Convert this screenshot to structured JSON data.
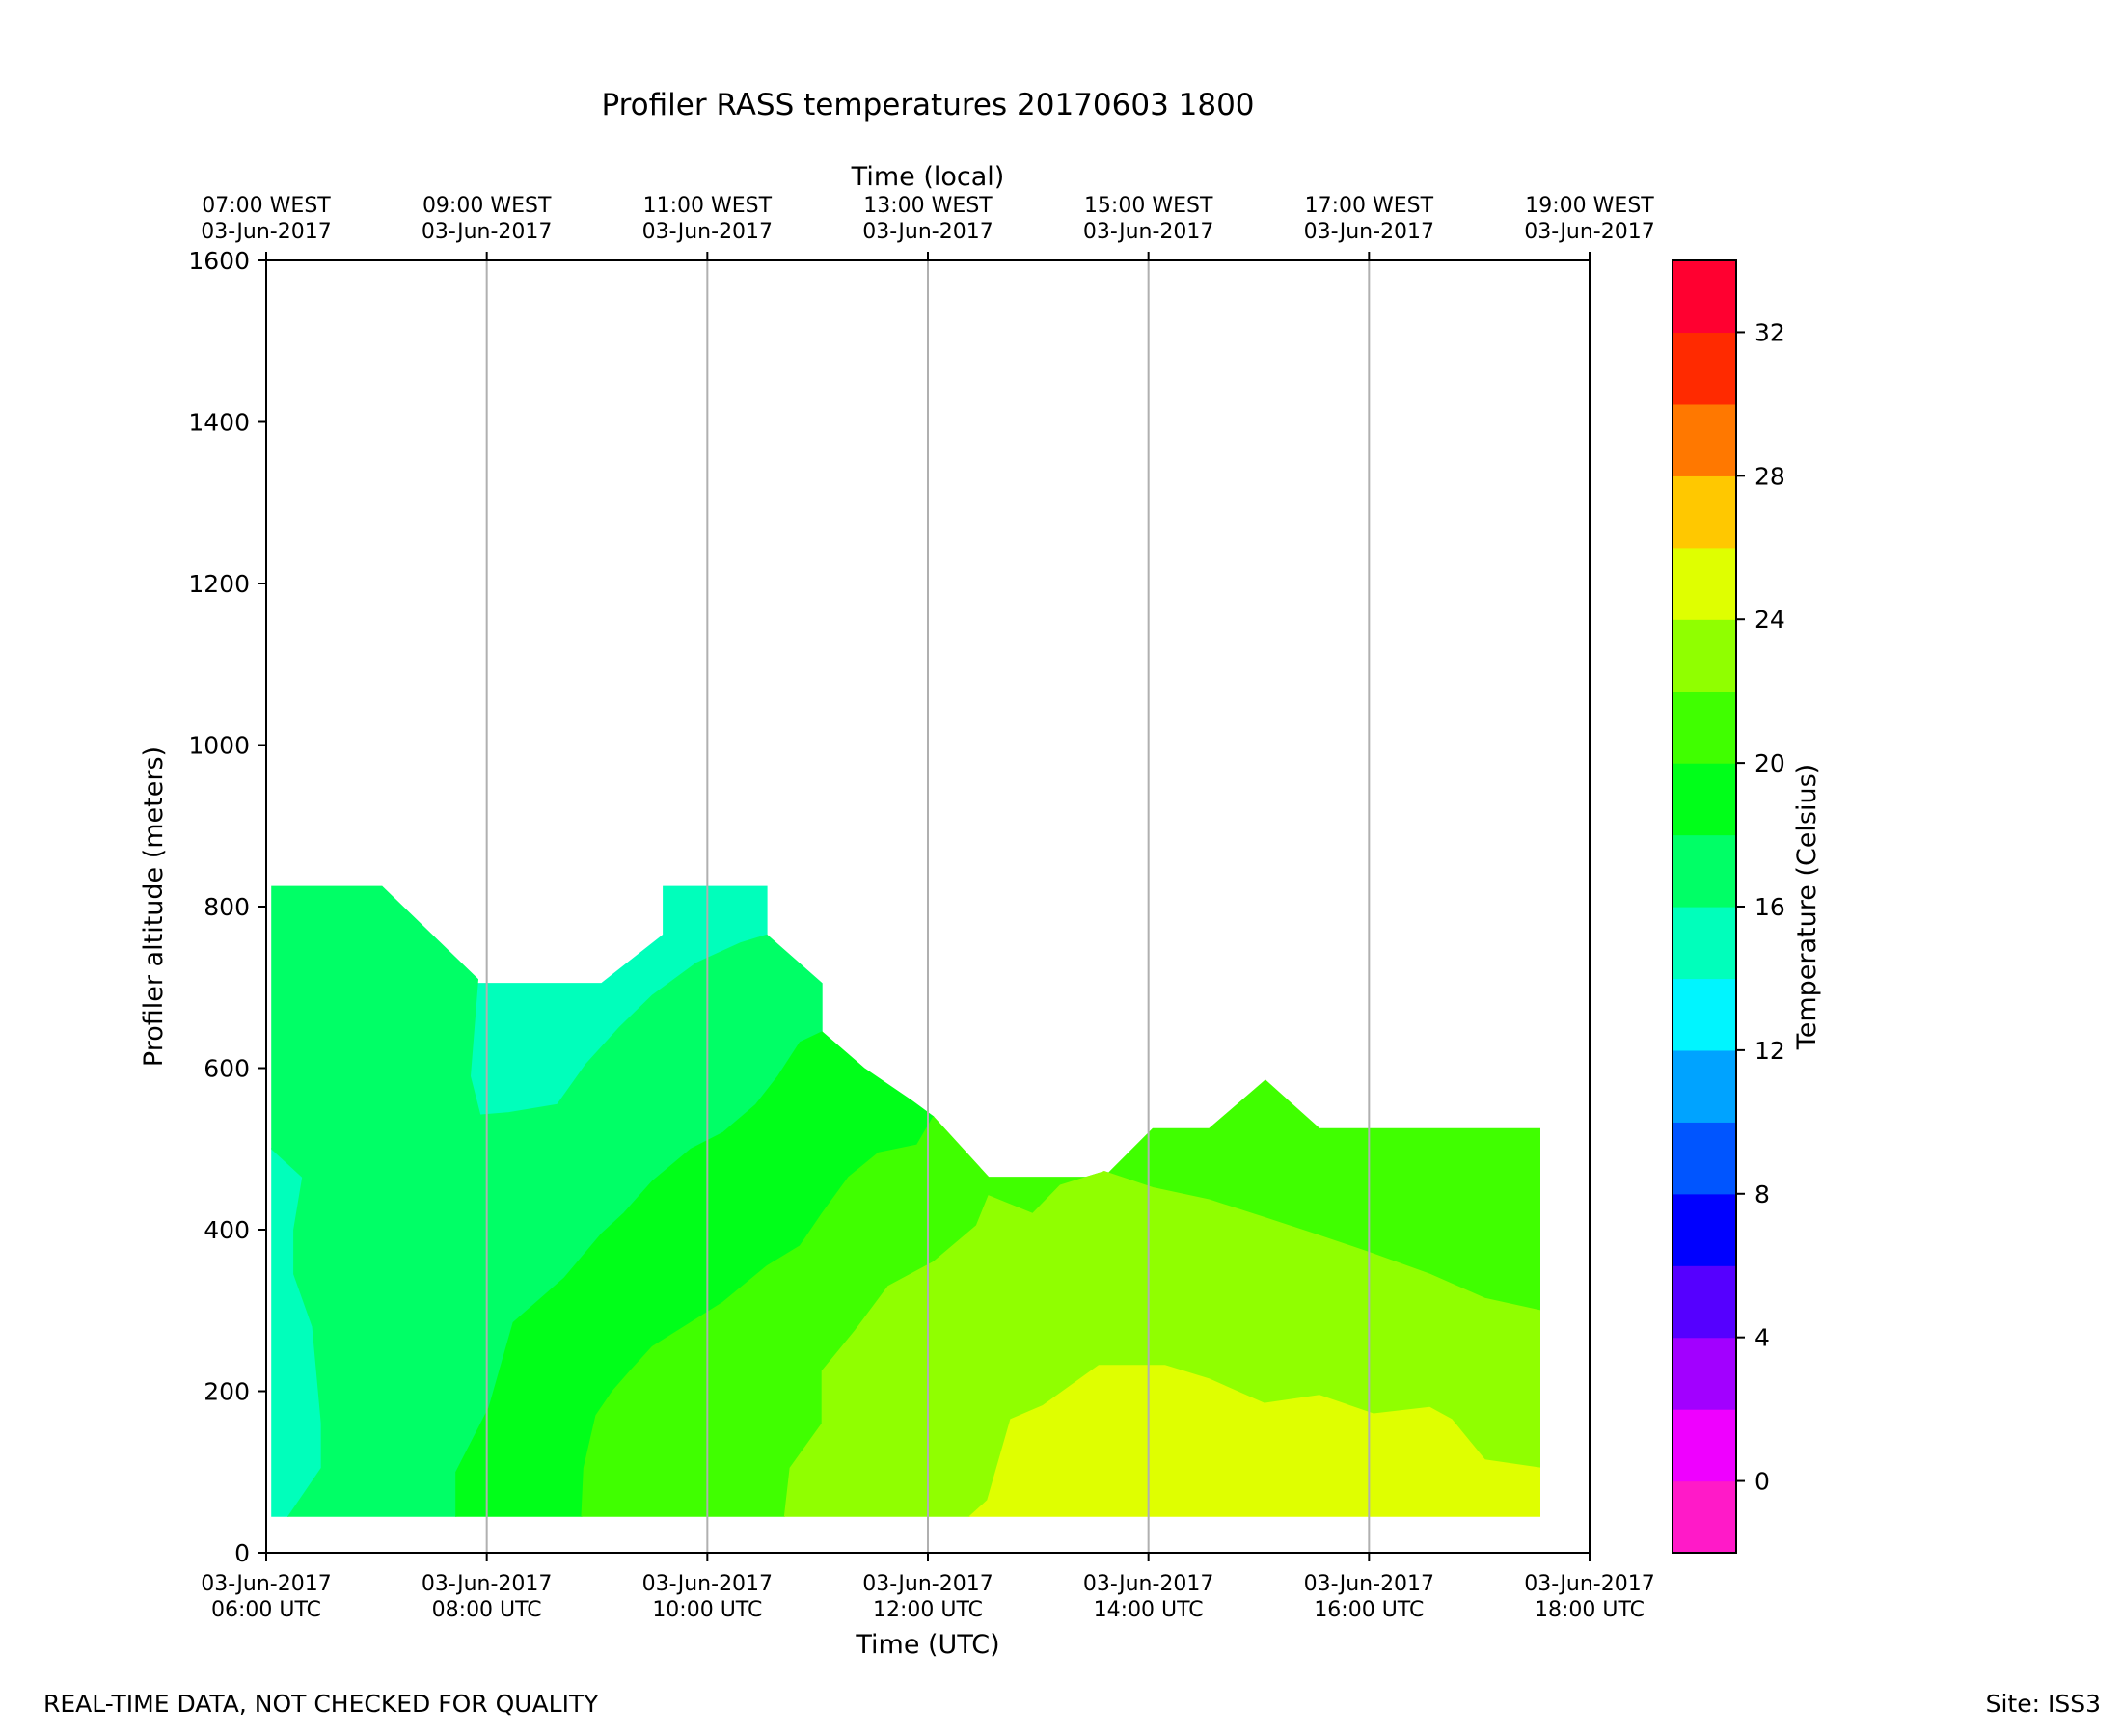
{
  "chart_data": {
    "type": "filled-contour",
    "title": "Profiler RASS temperatures 20170603 1800",
    "xlabel": "Time (UTC)",
    "xlabel_top": "Time (local)",
    "ylabel": "Profiler altitude (meters)",
    "colorbar_label": "Temperature (Celsius)",
    "xlim_hours_utc": [
      6,
      18
    ],
    "ylim": [
      0,
      1600
    ],
    "y_ticks": [
      0,
      200,
      400,
      600,
      800,
      1000,
      1200,
      1400,
      1600
    ],
    "x_ticks": [
      {
        "hour": 6,
        "date": "03-Jun-2017",
        "utc": "06:00 UTC",
        "local": "07:00 WEST"
      },
      {
        "hour": 8,
        "date": "03-Jun-2017",
        "utc": "08:00 UTC",
        "local": "09:00 WEST"
      },
      {
        "hour": 10,
        "date": "03-Jun-2017",
        "utc": "10:00 UTC",
        "local": "11:00 WEST"
      },
      {
        "hour": 12,
        "date": "03-Jun-2017",
        "utc": "12:00 UTC",
        "local": "13:00 WEST"
      },
      {
        "hour": 14,
        "date": "03-Jun-2017",
        "utc": "14:00 UTC",
        "local": "15:00 WEST"
      },
      {
        "hour": 16,
        "date": "03-Jun-2017",
        "utc": "16:00 UTC",
        "local": "17:00 WEST"
      },
      {
        "hour": 18,
        "date": "03-Jun-2017",
        "utc": "18:00 UTC",
        "local": "19:00 WEST"
      }
    ],
    "vertical_grid": true,
    "colorbar": {
      "min": -2,
      "max": 34,
      "step": 2,
      "ticks": [
        0,
        4,
        8,
        12,
        16,
        20,
        24,
        28,
        32
      ],
      "colors": [
        "#ff1ac8",
        "#ef00ff",
        "#a200ff",
        "#5500ff",
        "#0000ff",
        "#0055ff",
        "#00a3ff",
        "#00f5ff",
        "#00ffbb",
        "#00ff66",
        "#00ff19",
        "#40ff00",
        "#90ff00",
        "#dfff00",
        "#ffc800",
        "#ff7800",
        "#ff2a00",
        "#ff0030"
      ]
    },
    "regions": [
      {
        "range_c": "14-16",
        "color": "#00ffbb",
        "polygons": [
          [
            [
              6.05,
              500
            ],
            [
              6.33,
              465
            ],
            [
              6.25,
              400
            ],
            [
              6.25,
              345
            ],
            [
              6.42,
              280
            ],
            [
              6.5,
              160
            ],
            [
              6.5,
              105
            ],
            [
              6.2,
              45
            ],
            [
              6.05,
              45
            ]
          ],
          [
            [
              7.92,
              705
            ],
            [
              9.04,
              705
            ],
            [
              9.6,
              765
            ],
            [
              9.6,
              825
            ],
            [
              10.54,
              825
            ],
            [
              10.54,
              765
            ],
            [
              10.3,
              755
            ],
            [
              9.9,
              730
            ],
            [
              9.5,
              690
            ],
            [
              9.2,
              650
            ],
            [
              8.9,
              605
            ],
            [
              8.64,
              555
            ],
            [
              8.2,
              545
            ],
            [
              7.94,
              542
            ],
            [
              7.85,
              590
            ]
          ]
        ]
      },
      {
        "range_c": "16-18",
        "color": "#00ff66",
        "polygons": [
          [
            [
              6.05,
              825
            ],
            [
              7.05,
              825
            ],
            [
              7.92,
              710
            ],
            [
              7.85,
              590
            ],
            [
              7.94,
              542
            ],
            [
              8.2,
              545
            ],
            [
              8.64,
              555
            ],
            [
              8.9,
              605
            ],
            [
              9.2,
              650
            ],
            [
              9.5,
              690
            ],
            [
              9.9,
              730
            ],
            [
              10.3,
              755
            ],
            [
              10.54,
              765
            ],
            [
              11.04,
              705
            ],
            [
              11.04,
              645
            ],
            [
              10.84,
              632
            ],
            [
              10.64,
              590
            ],
            [
              10.44,
              555
            ],
            [
              10.14,
              520
            ],
            [
              9.85,
              500
            ],
            [
              9.5,
              460
            ],
            [
              9.24,
              420
            ],
            [
              9.04,
              395
            ],
            [
              8.7,
              340
            ],
            [
              8.24,
              285
            ],
            [
              8.02,
              180
            ],
            [
              7.72,
              100
            ],
            [
              7.72,
              45
            ],
            [
              6.2,
              45
            ],
            [
              6.5,
              105
            ],
            [
              6.5,
              160
            ],
            [
              6.42,
              280
            ],
            [
              6.25,
              345
            ],
            [
              6.25,
              400
            ],
            [
              6.33,
              465
            ],
            [
              6.05,
              500
            ]
          ]
        ]
      },
      {
        "range_c": "18-20",
        "color": "#00ff19",
        "polygons": [
          [
            [
              7.72,
              45
            ],
            [
              7.72,
              100
            ],
            [
              8.02,
              180
            ],
            [
              8.24,
              285
            ],
            [
              8.7,
              340
            ],
            [
              9.04,
              395
            ],
            [
              9.24,
              420
            ],
            [
              9.5,
              460
            ],
            [
              9.85,
              500
            ],
            [
              10.14,
              520
            ],
            [
              10.44,
              555
            ],
            [
              10.64,
              590
            ],
            [
              10.84,
              632
            ],
            [
              11.04,
              645
            ],
            [
              11.42,
              600
            ],
            [
              11.85,
              560
            ],
            [
              12.05,
              540
            ],
            [
              11.9,
              505
            ],
            [
              11.55,
              495
            ],
            [
              11.28,
              465
            ],
            [
              11.04,
              420
            ],
            [
              10.84,
              380
            ],
            [
              10.54,
              355
            ],
            [
              10.14,
              310
            ],
            [
              9.85,
              285
            ],
            [
              9.5,
              255
            ],
            [
              9.3,
              225
            ],
            [
              9.14,
              200
            ],
            [
              8.99,
              170
            ],
            [
              8.88,
              105
            ],
            [
              8.86,
              45
            ]
          ]
        ]
      },
      {
        "range_c": "20-22",
        "color": "#40ff00",
        "polygons": [
          [
            [
              8.86,
              45
            ],
            [
              8.88,
              105
            ],
            [
              8.99,
              170
            ],
            [
              9.14,
              200
            ],
            [
              9.3,
              225
            ],
            [
              9.5,
              255
            ],
            [
              9.85,
              285
            ],
            [
              10.14,
              310
            ],
            [
              10.54,
              355
            ],
            [
              10.84,
              380
            ],
            [
              11.04,
              420
            ],
            [
              11.28,
              465
            ],
            [
              11.55,
              495
            ],
            [
              11.9,
              505
            ],
            [
              12.05,
              540
            ],
            [
              12.55,
              465
            ],
            [
              13.6,
              465
            ],
            [
              14.04,
              525
            ],
            [
              14.55,
              525
            ],
            [
              15.06,
              585
            ],
            [
              15.55,
              525
            ],
            [
              17.55,
              525
            ],
            [
              17.55,
              300
            ],
            [
              17.05,
              315
            ],
            [
              16.55,
              345
            ],
            [
              16.0,
              372
            ],
            [
              15.5,
              395
            ],
            [
              15.05,
              415
            ],
            [
              14.55,
              437
            ],
            [
              14.04,
              452
            ],
            [
              13.6,
              472
            ],
            [
              13.2,
              455
            ],
            [
              12.95,
              420
            ],
            [
              12.55,
              442
            ],
            [
              12.44,
              405
            ],
            [
              12.05,
              360
            ],
            [
              11.64,
              330
            ],
            [
              11.34,
              275
            ],
            [
              11.04,
              225
            ],
            [
              11.04,
              160
            ],
            [
              10.75,
              105
            ],
            [
              10.7,
              45
            ]
          ]
        ]
      },
      {
        "range_c": "22-24",
        "color": "#90ff00",
        "polygons": [
          [
            [
              10.7,
              45
            ],
            [
              10.75,
              105
            ],
            [
              11.04,
              160
            ],
            [
              11.04,
              225
            ],
            [
              11.34,
              275
            ],
            [
              11.64,
              330
            ],
            [
              12.05,
              360
            ],
            [
              12.44,
              405
            ],
            [
              12.55,
              442
            ],
            [
              12.95,
              420
            ],
            [
              13.2,
              455
            ],
            [
              13.6,
              472
            ],
            [
              14.04,
              452
            ],
            [
              14.55,
              437
            ],
            [
              15.05,
              415
            ],
            [
              15.5,
              395
            ],
            [
              16.0,
              372
            ],
            [
              16.55,
              345
            ],
            [
              17.05,
              315
            ],
            [
              17.55,
              300
            ],
            [
              17.55,
              105
            ],
            [
              17.05,
              115
            ],
            [
              16.75,
              165
            ],
            [
              16.55,
              180
            ],
            [
              16.04,
              172
            ],
            [
              15.55,
              195
            ],
            [
              15.05,
              185
            ],
            [
              14.55,
              215
            ],
            [
              14.15,
              232
            ],
            [
              13.55,
              232
            ],
            [
              13.04,
              182
            ],
            [
              12.75,
              165
            ],
            [
              12.54,
              65
            ],
            [
              12.38,
              45
            ]
          ]
        ]
      },
      {
        "range_c": "24-26",
        "color": "#dfff00",
        "polygons": [
          [
            [
              12.38,
              45
            ],
            [
              12.54,
              65
            ],
            [
              12.75,
              165
            ],
            [
              13.04,
              182
            ],
            [
              13.55,
              232
            ],
            [
              14.15,
              232
            ],
            [
              14.55,
              215
            ],
            [
              15.05,
              185
            ],
            [
              15.55,
              195
            ],
            [
              16.04,
              172
            ],
            [
              16.55,
              180
            ],
            [
              16.75,
              165
            ],
            [
              17.05,
              115
            ],
            [
              17.55,
              105
            ],
            [
              17.55,
              45
            ]
          ]
        ]
      }
    ]
  },
  "footer": {
    "left": "REAL-TIME DATA, NOT CHECKED FOR QUALITY",
    "right": "Site: ISS3"
  }
}
